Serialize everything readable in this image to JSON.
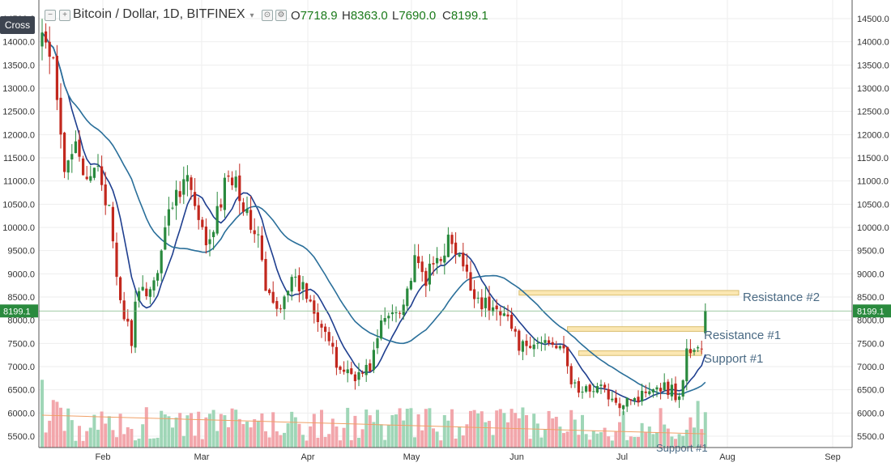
{
  "header": {
    "title": "Bitcoin / Dollar, 1D, BITFINEX",
    "ohlc": [
      {
        "key": "O",
        "value": "7718.9"
      },
      {
        "key": "H",
        "value": "8363.0"
      },
      {
        "key": "L",
        "value": "7690.0"
      },
      {
        "key": "C",
        "value": "8199.1"
      }
    ],
    "cross_label": "Cross"
  },
  "colors": {
    "up": "#2a8a3e",
    "down": "#c2281e",
    "vol_up": "#9fd6b7",
    "vol_down": "#f2a6ab",
    "ma_fast": "#1f3f8f",
    "ma_slow": "#2a6f9a",
    "zone_fill": "#fbe7b2",
    "zone_stroke": "#d9bd6f",
    "price_line": "#7fb983",
    "price_tag": "#2a8a3e",
    "annotation": "#4a6a84",
    "axis_text": "#333333",
    "grid": "#eeeeee"
  },
  "chart_data": {
    "type": "candlestick",
    "title": "Bitcoin / Dollar, 1D, BITFINEX",
    "ylim": [
      5000,
      14800
    ],
    "y_ticks": [
      "5500.0",
      "6000.0",
      "6500.0",
      "7000.0",
      "7500.0",
      "8000.0",
      "8500.0",
      "9000.0",
      "9500.0",
      "10000.0",
      "10500.0",
      "11000.0",
      "11500.0",
      "12000.0",
      "12500.0",
      "13000.0",
      "13500.0",
      "14000.0",
      "14500.0"
    ],
    "x_ticks": [
      "Feb",
      "Mar",
      "Apr",
      "May",
      "Jun",
      "Jul",
      "Aug",
      "Sep"
    ],
    "last_price": "8199.1",
    "price_anchors": [
      {
        "day": 0,
        "price": 14200
      },
      {
        "day": 3,
        "price": 13400
      },
      {
        "day": 6,
        "price": 11100
      },
      {
        "day": 9,
        "price": 12100
      },
      {
        "day": 12,
        "price": 10800
      },
      {
        "day": 15,
        "price": 11400
      },
      {
        "day": 18,
        "price": 10300
      },
      {
        "day": 20,
        "price": 8800
      },
      {
        "day": 22,
        "price": 8100
      },
      {
        "day": 24,
        "price": 7600
      },
      {
        "day": 25,
        "price": 8300
      },
      {
        "day": 27,
        "price": 8600
      },
      {
        "day": 30,
        "price": 8800
      },
      {
        "day": 33,
        "price": 10000
      },
      {
        "day": 36,
        "price": 10800
      },
      {
        "day": 39,
        "price": 11100
      },
      {
        "day": 42,
        "price": 10000
      },
      {
        "day": 45,
        "price": 9600
      },
      {
        "day": 48,
        "price": 10600
      },
      {
        "day": 50,
        "price": 11200
      },
      {
        "day": 52,
        "price": 11100
      },
      {
        "day": 55,
        "price": 10200
      },
      {
        "day": 58,
        "price": 9800
      },
      {
        "day": 60,
        "price": 8600
      },
      {
        "day": 63,
        "price": 8200
      },
      {
        "day": 66,
        "price": 8800
      },
      {
        "day": 70,
        "price": 8700
      },
      {
        "day": 73,
        "price": 8300
      },
      {
        "day": 76,
        "price": 7800
      },
      {
        "day": 79,
        "price": 7000
      },
      {
        "day": 82,
        "price": 6900
      },
      {
        "day": 85,
        "price": 6800
      },
      {
        "day": 88,
        "price": 7000
      },
      {
        "day": 91,
        "price": 7900
      },
      {
        "day": 94,
        "price": 8200
      },
      {
        "day": 97,
        "price": 8400
      },
      {
        "day": 100,
        "price": 9200
      },
      {
        "day": 103,
        "price": 8900
      },
      {
        "day": 106,
        "price": 9300
      },
      {
        "day": 109,
        "price": 9700
      },
      {
        "day": 112,
        "price": 9300
      },
      {
        "day": 115,
        "price": 8700
      },
      {
        "day": 118,
        "price": 8400
      },
      {
        "day": 121,
        "price": 8200
      },
      {
        "day": 124,
        "price": 8300
      },
      {
        "day": 127,
        "price": 7600
      },
      {
        "day": 130,
        "price": 7300
      },
      {
        "day": 133,
        "price": 7500
      },
      {
        "day": 136,
        "price": 7600
      },
      {
        "day": 139,
        "price": 7500
      },
      {
        "day": 142,
        "price": 6700
      },
      {
        "day": 145,
        "price": 6400
      },
      {
        "day": 148,
        "price": 6600
      },
      {
        "day": 151,
        "price": 6500
      },
      {
        "day": 154,
        "price": 6100
      },
      {
        "day": 157,
        "price": 6400
      },
      {
        "day": 160,
        "price": 6300
      },
      {
        "day": 163,
        "price": 6600
      },
      {
        "day": 166,
        "price": 6600
      },
      {
        "day": 169,
        "price": 6500
      },
      {
        "day": 171,
        "price": 6300
      },
      {
        "day": 173,
        "price": 7300
      },
      {
        "day": 175,
        "price": 7400
      },
      {
        "day": 177,
        "price": 7400
      },
      {
        "day": 178,
        "price": 8199
      }
    ],
    "zones": [
      {
        "label": "Resistance #2",
        "day_start": 128,
        "day_end": 200,
        "low": 8540,
        "high": 8640
      },
      {
        "label": "Resistance #1",
        "day_start": 141,
        "day_end": 178,
        "low": 7760,
        "high": 7860
      },
      {
        "label": "Support #1",
        "day_start": 144,
        "day_end": 177,
        "low": 7240,
        "high": 7340
      }
    ],
    "zone_labels": [
      "Resistance #2",
      "Resistance #1",
      "Support #1"
    ],
    "bottom_annotation": "Support #1"
  }
}
